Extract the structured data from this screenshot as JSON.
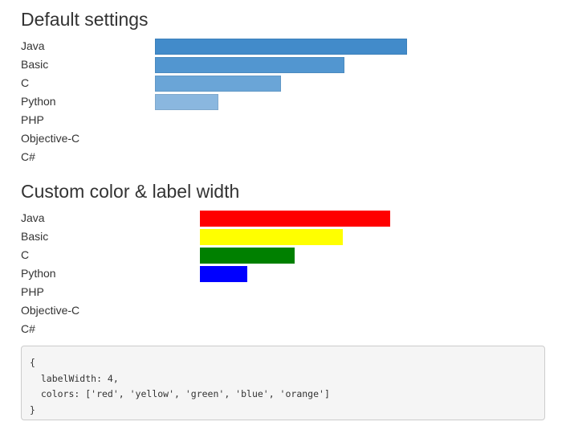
{
  "chart_data": [
    {
      "type": "bar",
      "orientation": "horizontal",
      "title": "Default settings",
      "categories": [
        "Java",
        "Basic",
        "C",
        "Python",
        "PHP",
        "Objective-C",
        "C#"
      ],
      "values": [
        4,
        3,
        2,
        1,
        0,
        0,
        0
      ],
      "colors": [
        "#428bca",
        "#5296d0",
        "#6aa5d7",
        "#8ab7df",
        "#a6c8e6",
        "#bfd7ec",
        "#d4e4f1"
      ],
      "label_width": 3,
      "xlim": [
        0,
        6
      ]
    },
    {
      "type": "bar",
      "orientation": "horizontal",
      "title": "Custom color & label width",
      "categories": [
        "Java",
        "Basic",
        "C",
        "Python",
        "PHP",
        "Objective-C",
        "C#"
      ],
      "values": [
        4,
        3,
        2,
        1,
        0,
        0,
        0
      ],
      "colors": [
        "red",
        "yellow",
        "green",
        "blue",
        "orange",
        "red",
        "yellow"
      ],
      "label_width": 4,
      "xlim": [
        0,
        7
      ]
    }
  ],
  "code_block": "{\n  labelWidth: 4,\n  colors: ['red', 'yellow', 'green', 'blue', 'orange']\n}"
}
